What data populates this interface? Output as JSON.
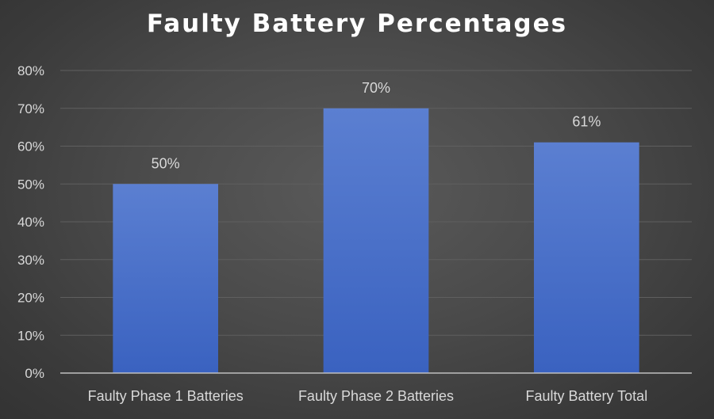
{
  "chart_data": {
    "type": "bar",
    "title": "Faulty Battery Percentages",
    "categories": [
      "Faulty Phase 1 Batteries",
      "Faulty Phase 2 Batteries",
      "Faulty Battery Total"
    ],
    "values": [
      50,
      70,
      61
    ],
    "data_labels": [
      "50%",
      "70%",
      "61%"
    ],
    "y_ticks": [
      "0%",
      "10%",
      "20%",
      "30%",
      "40%",
      "50%",
      "60%",
      "70%",
      "80%"
    ],
    "ylim": [
      0,
      80
    ],
    "grid": true,
    "legend": "none",
    "bar_color_top": "#5b7fd1",
    "bar_color_bottom": "#3a62c0",
    "gridline_color": "#5f5f5f",
    "axis_color": "#bfbfbf"
  }
}
